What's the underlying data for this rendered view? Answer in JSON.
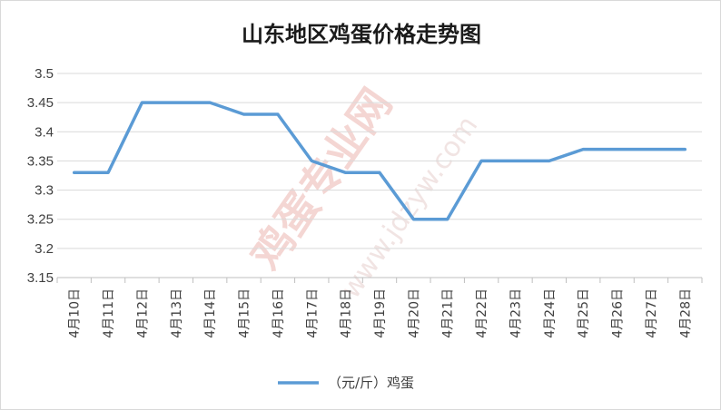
{
  "chart_data": {
    "type": "line",
    "title": "山东地区鸡蛋价格走势图",
    "xlabel": "",
    "ylabel": "",
    "categories": [
      "4月10日",
      "4月11日",
      "4月12日",
      "4月13日",
      "4月14日",
      "4月15日",
      "4月16日",
      "4月17日",
      "4月18日",
      "4月19日",
      "4月20日",
      "4月21日",
      "4月22日",
      "4月23日",
      "4月24日",
      "4月25日",
      "4月26日",
      "4月27日",
      "4月28日"
    ],
    "series": [
      {
        "name": "（元/斤）鸡蛋",
        "color": "#5b9bd5",
        "values": [
          3.33,
          3.33,
          3.45,
          3.45,
          3.45,
          3.43,
          3.43,
          3.35,
          3.33,
          3.33,
          3.25,
          3.25,
          3.35,
          3.35,
          3.35,
          3.37,
          3.37,
          3.37,
          3.37
        ]
      }
    ],
    "ylim": [
      3.15,
      3.5
    ],
    "yticks": [
      "3.5",
      "3.45",
      "3.4",
      "3.35",
      "3.3",
      "3.25",
      "3.2",
      "3.15"
    ],
    "grid": true,
    "legend_position": "bottom"
  },
  "watermark": {
    "main": "鸡蛋专业网",
    "url": "www.jdzyw.com"
  }
}
